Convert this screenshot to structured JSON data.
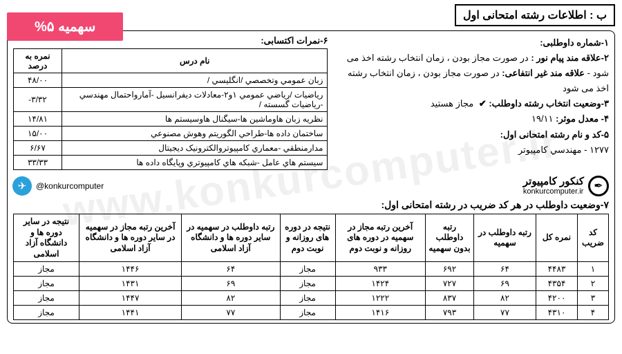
{
  "header": {
    "title": "ب : اطلاعات رشته امتحانی اول",
    "quota_badge": "سهمیه ۵%"
  },
  "info": {
    "line1_label": "۱-شماره داوطلبی:",
    "line2_label": "۲-علاقه مند پیام نور :",
    "line2_text": " در صورت مجاز بودن ، زمان انتخاب رشته اخذ می شود - ",
    "line2_label2": "علاقه مند غیر انتفاعی:",
    "line2_text2": " در صورت مجاز بودن ، زمان انتخاب رشته اخذ می شود",
    "line3_label": "۳-وضعیت انتخاب رشته داوطلب:",
    "line3_value": " مجاز هستید",
    "line4_label": "۴- معدل موثر:",
    "line4_value": " ۱۹/۱۱",
    "line5_label": "۵-کد و نام رشته امتحانی اول:",
    "line5_value": "۱۲۷۷ - مهندسي کامپيوتر"
  },
  "scores": {
    "title": "۶-نمرات اکتسابی:",
    "col_course": "نام درس",
    "col_score": "نمره به درصد",
    "rows": [
      {
        "course": "زبان عمومي وتخصصي /انگليسي /",
        "score": "۴۸/۰۰"
      },
      {
        "course": "رياضيات /رياضي عمومي ۱و۲-معادلات ديفرانسيل -آمارواحتمال مهندسي -رياضيات گسسته /",
        "score": "-۳/۳۲"
      },
      {
        "course": "نظريه زبان هاوماشين ها-سيگنال هاوسيستم ها",
        "score": "۱۴/۸۱"
      },
      {
        "course": "ساختمان داده ها-طراحي الگوريتم وهوش مصنوعي",
        "score": "۱۵/۰۰"
      },
      {
        "course": "مدارمنطقي -معماري کامپيوتروالکترونيک ديجيتال",
        "score": "۶/۶۷"
      },
      {
        "course": "سيستم هاي عامل -شبکه هاي کامپيوتري وپايگاه داده ها",
        "score": "۳۳/۳۳"
      }
    ]
  },
  "branding": {
    "site_fa": "کنکور کامپیوتر",
    "site_en": "konkurcomputer.ir",
    "telegram": "@konkurcomputer"
  },
  "status": {
    "title": "۷-وضعیت داوطلب در هر کد ضریب در رشته امتحانی اول:",
    "cols": {
      "c1": "کد ضریب",
      "c2": "نمره کل",
      "c3": "رتبه داوطلب در سهمیه",
      "c4": "رتبه داوطلب بدون سهمیه",
      "c5": "آخرین رتبه مجاز در سهمیه در دوره های روزانه و نوبت دوم",
      "c6": "نتیجه در دوره های روزانه و نوبت دوم",
      "c7": "رتبه داوطلب در سهمیه در سایر دوره ها و دانشگاه آزاد اسلامی",
      "c8": "آخرین رتبه مجاز در سهمیه در سایر دوره ها و دانشگاه آزاد اسلامی",
      "c9": "نتیجه در سایر دوره ها و دانشگاه آزاد اسلامی"
    },
    "rows": [
      {
        "c1": "۱",
        "c2": "۴۴۸۳",
        "c3": "۶۴",
        "c4": "۶۹۲",
        "c5": "۹۳۳",
        "c6": "مجاز",
        "c7": "۶۴",
        "c8": "۱۴۴۶",
        "c9": "مجاز"
      },
      {
        "c1": "۲",
        "c2": "۴۳۵۴",
        "c3": "۶۹",
        "c4": "۷۲۷",
        "c5": "۱۴۲۴",
        "c6": "مجاز",
        "c7": "۶۹",
        "c8": "۱۴۳۱",
        "c9": "مجاز"
      },
      {
        "c1": "۳",
        "c2": "۴۲۰۰",
        "c3": "۸۲",
        "c4": "۸۳۷",
        "c5": "۱۲۲۲",
        "c6": "مجاز",
        "c7": "۸۲",
        "c8": "۱۴۴۷",
        "c9": "مجاز"
      },
      {
        "c1": "۴",
        "c2": "۴۳۱۰",
        "c3": "۷۷",
        "c4": "۷۹۳",
        "c5": "۱۴۱۶",
        "c6": "مجاز",
        "c7": "۷۷",
        "c8": "۱۴۴۱",
        "c9": "مجاز"
      }
    ]
  },
  "watermark": "www.konkurcomputer.ir",
  "colors": {
    "badge_bg": "#f04871",
    "telegram": "#2aa1da"
  }
}
